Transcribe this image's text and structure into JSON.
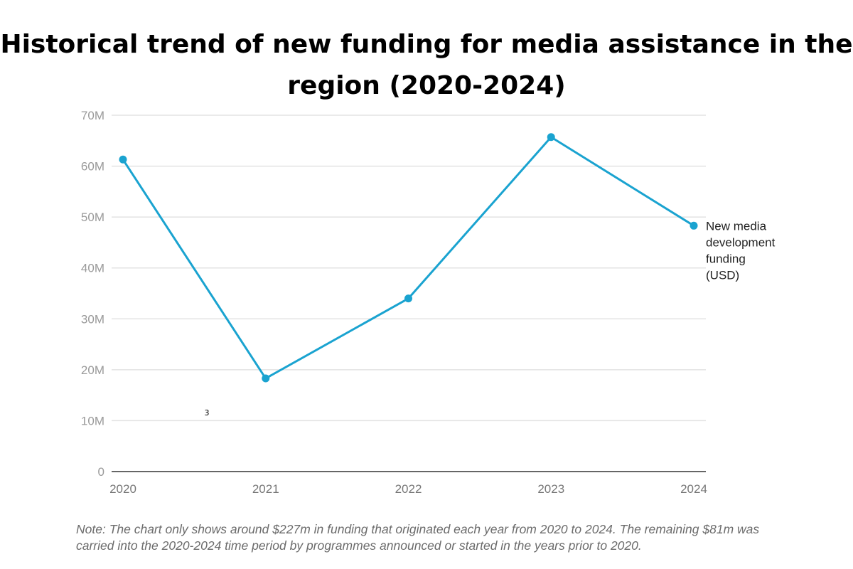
{
  "chart_data": {
    "type": "line",
    "title": "Historical trend of new funding for media assistance in the region (2020-2024)",
    "categories": [
      "2020",
      "2021",
      "2022",
      "2023",
      "2024"
    ],
    "series": [
      {
        "name": "New media development funding (USD)",
        "values": [
          61300000,
          18300000,
          34000000,
          65700000,
          48300000
        ]
      }
    ],
    "ylim": [
      0,
      70000000
    ],
    "yticks": [
      0,
      10000000,
      20000000,
      30000000,
      40000000,
      50000000,
      60000000,
      70000000
    ],
    "ytick_labels": [
      "0",
      "10M",
      "20M",
      "30M",
      "40M",
      "50M",
      "60M",
      "70M"
    ],
    "grid": true,
    "legend_placement": "right, at end of line",
    "series_color": "#1aa3d0",
    "stray_annotation": "3",
    "note": "Note: The chart only shows around $227m in funding that originated each year from 2020 to 2024. The remaining $81m was carried into the 2020-2024 time period by programmes announced or started in the years prior to 2020."
  }
}
